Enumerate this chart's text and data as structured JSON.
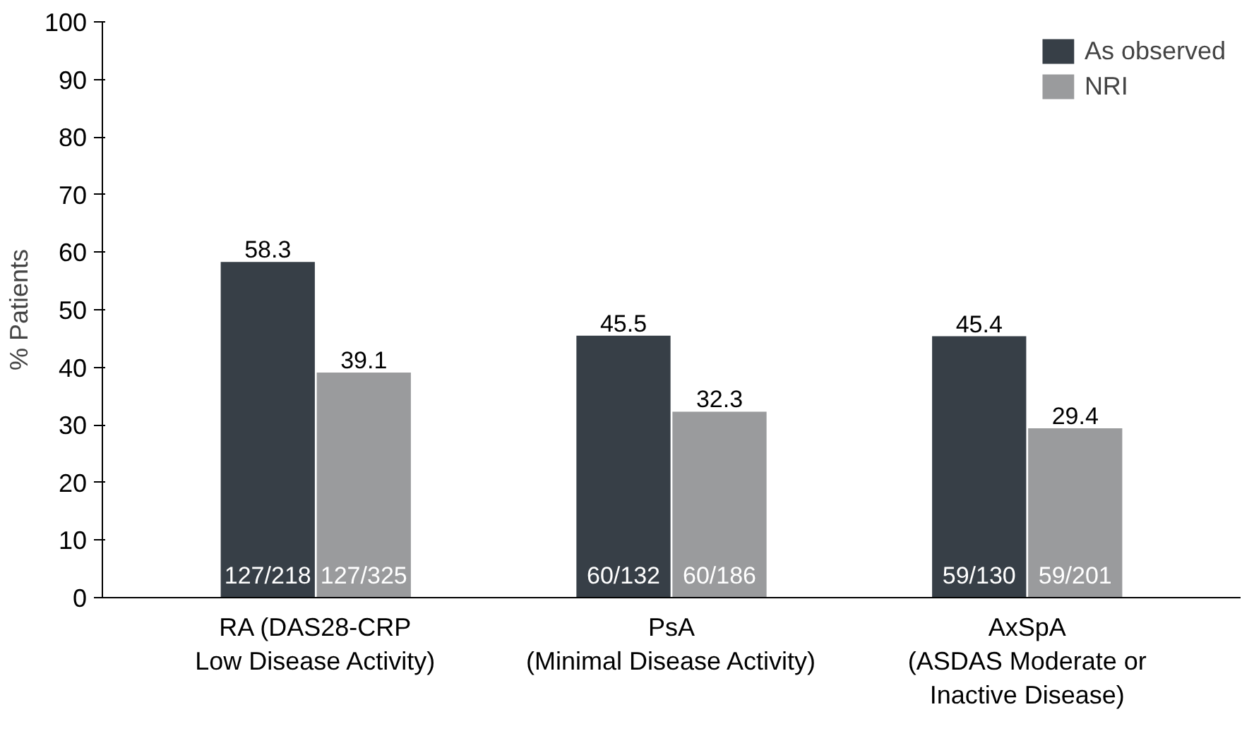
{
  "chart_data": {
    "type": "bar",
    "ylabel": "% Patients",
    "categories": [
      "RA (DAS28-CRP\nLow Disease Activity)",
      "PsA\n(Minimal Disease Activity)",
      "AxSpA\n(ASDAS Moderate or\nInactive Disease)"
    ],
    "series": [
      {
        "name": "As observed",
        "color": "#373f47",
        "values": [
          58.3,
          45.5,
          45.4
        ]
      },
      {
        "name": "NRI",
        "color": "#9a9b9d",
        "values": [
          39.1,
          32.3,
          29.4
        ]
      }
    ],
    "ylim": [
      0,
      100
    ],
    "yticks": [
      0,
      10,
      20,
      30,
      40,
      50,
      60,
      70,
      80,
      90,
      100
    ],
    "data_labels": true,
    "grid": false,
    "legend": "top right",
    "annotations": [
      "127/218",
      "127/325",
      "60/132",
      "60/186",
      "59/130",
      "59/201"
    ]
  }
}
